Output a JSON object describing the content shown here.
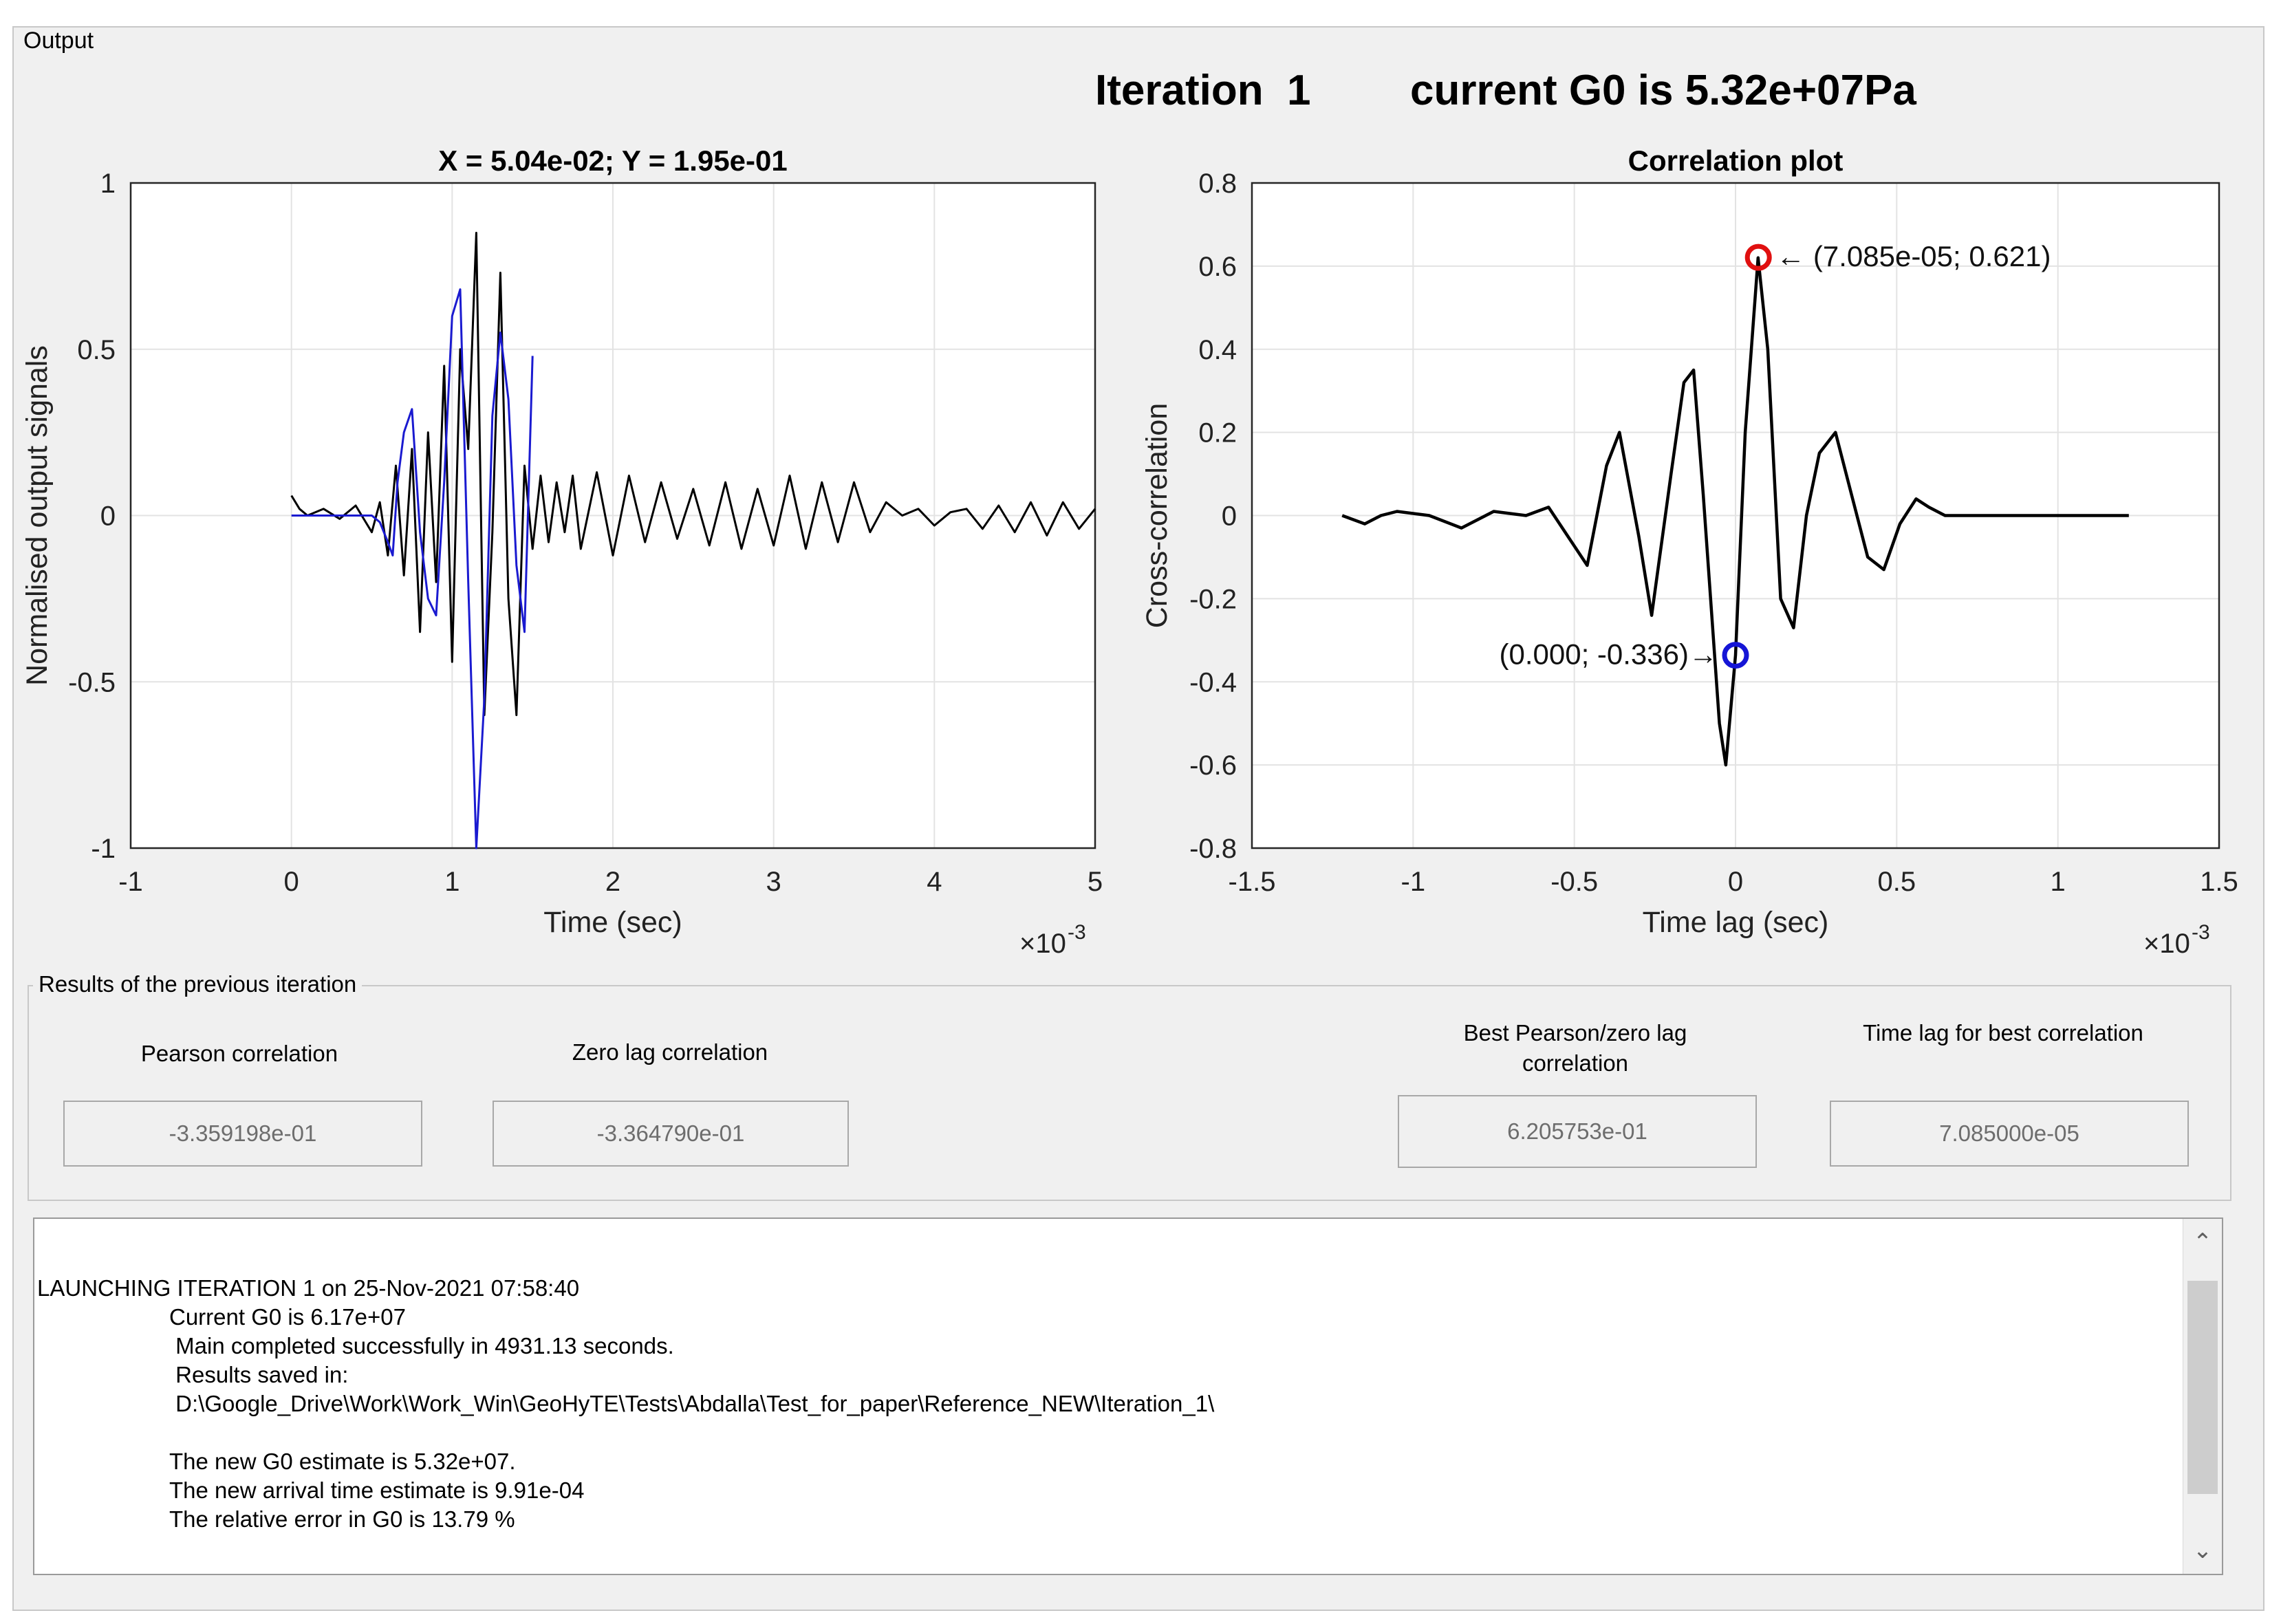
{
  "panel": {
    "title": "Output"
  },
  "header": {
    "iteration": "Iteration  1",
    "g0": "current G0 is 5.32e+07Pa"
  },
  "chart_data": [
    {
      "type": "line",
      "title": "X = 5.04e-02; Y = 1.95e-01",
      "xlabel": "Time (sec)",
      "ylabel": "Normalised output signals",
      "x_exponent": "×10",
      "x_exponent_power": "-3",
      "xlim": [
        -1,
        5
      ],
      "ylim": [
        -1,
        1
      ],
      "xticks": [
        "-1",
        "0",
        "1",
        "2",
        "3",
        "4",
        "5"
      ],
      "yticks": [
        "-1",
        "-0.5",
        "0",
        "0.5",
        "1"
      ],
      "grid": true,
      "x_unit_scale": "1e-3 s",
      "series": [
        {
          "color": "#000000",
          "x": [
            0,
            0.05,
            0.1,
            0.2,
            0.3,
            0.4,
            0.5,
            0.55,
            0.6,
            0.65,
            0.7,
            0.75,
            0.8,
            0.85,
            0.9,
            0.95,
            1.0,
            1.05,
            1.1,
            1.15,
            1.2,
            1.25,
            1.3,
            1.35,
            1.4,
            1.45,
            1.5,
            1.55,
            1.6,
            1.65,
            1.7,
            1.75,
            1.8,
            1.9,
            2.0,
            2.1,
            2.2,
            2.3,
            2.4,
            2.5,
            2.6,
            2.7,
            2.8,
            2.9,
            3.0,
            3.1,
            3.2,
            3.3,
            3.4,
            3.5,
            3.6,
            3.7,
            3.8,
            3.9,
            4.0,
            4.1,
            4.2,
            4.3,
            4.4,
            4.5,
            4.6,
            4.7,
            4.8,
            4.9,
            5.0
          ],
          "y": [
            0.06,
            0.02,
            0.0,
            0.02,
            -0.01,
            0.03,
            -0.05,
            0.04,
            -0.12,
            0.15,
            -0.18,
            0.2,
            -0.35,
            0.25,
            -0.2,
            0.45,
            -0.44,
            0.5,
            0.2,
            0.85,
            -0.6,
            -0.05,
            0.73,
            -0.25,
            -0.6,
            0.15,
            -0.1,
            0.12,
            -0.08,
            0.1,
            -0.05,
            0.12,
            -0.1,
            0.13,
            -0.12,
            0.12,
            -0.08,
            0.1,
            -0.07,
            0.08,
            -0.09,
            0.1,
            -0.1,
            0.08,
            -0.09,
            0.12,
            -0.1,
            0.1,
            -0.08,
            0.1,
            -0.05,
            0.04,
            0.0,
            0.02,
            -0.03,
            0.01,
            0.02,
            -0.04,
            0.03,
            -0.05,
            0.04,
            -0.06,
            0.04,
            -0.04,
            0.02
          ]
        },
        {
          "color": "#1a1ad0",
          "x": [
            0,
            0.1,
            0.2,
            0.3,
            0.4,
            0.5,
            0.55,
            0.6,
            0.63,
            0.66,
            0.7,
            0.75,
            0.8,
            0.85,
            0.9,
            0.95,
            1.0,
            1.05,
            1.1,
            1.15,
            1.2,
            1.25,
            1.3,
            1.35,
            1.4,
            1.45,
            1.5
          ],
          "y": [
            0.0,
            0.0,
            0.0,
            0.0,
            0.0,
            0.0,
            -0.02,
            -0.08,
            -0.12,
            0.1,
            0.25,
            0.32,
            -0.05,
            -0.25,
            -0.3,
            0.1,
            0.6,
            0.68,
            -0.2,
            -1.0,
            -0.55,
            0.3,
            0.55,
            0.35,
            -0.15,
            -0.35,
            0.48
          ]
        }
      ]
    },
    {
      "type": "line",
      "title": "Correlation plot",
      "xlabel": "Time lag (sec)",
      "ylabel": "Cross-correlation",
      "x_exponent": "×10",
      "x_exponent_power": "-3",
      "xlim": [
        -1.5,
        1.5
      ],
      "ylim": [
        -0.8,
        0.8
      ],
      "xticks": [
        "-1.5",
        "-1",
        "-0.5",
        "0",
        "0.5",
        "1",
        "1.5"
      ],
      "yticks": [
        "-0.8",
        "-0.6",
        "-0.4",
        "-0.2",
        "0",
        "0.2",
        "0.4",
        "0.6",
        "0.8"
      ],
      "grid": true,
      "series": [
        {
          "color": "#000000",
          "x": [
            -1.22,
            -1.15,
            -1.1,
            -1.05,
            -0.95,
            -0.85,
            -0.75,
            -0.65,
            -0.58,
            -0.52,
            -0.46,
            -0.4,
            -0.36,
            -0.3,
            -0.26,
            -0.2,
            -0.16,
            -0.13,
            -0.1,
            -0.05,
            -0.03,
            0.0,
            0.03,
            0.07,
            0.1,
            0.14,
            0.18,
            0.22,
            0.26,
            0.31,
            0.36,
            0.41,
            0.46,
            0.51,
            0.56,
            0.6,
            0.65,
            0.75,
            0.9,
            1.05,
            1.22
          ],
          "y": [
            0.0,
            -0.02,
            0.0,
            0.01,
            0.0,
            -0.03,
            0.01,
            0.0,
            0.02,
            -0.05,
            -0.12,
            0.12,
            0.2,
            -0.05,
            -0.24,
            0.1,
            0.32,
            0.35,
            0.05,
            -0.5,
            -0.6,
            -0.336,
            0.2,
            0.62,
            0.4,
            -0.2,
            -0.27,
            0.0,
            0.15,
            0.2,
            0.05,
            -0.1,
            -0.13,
            -0.02,
            0.04,
            0.02,
            0.0,
            0.0,
            0.0,
            0.0,
            0.0
          ]
        }
      ],
      "markers": [
        {
          "x": 0.07085,
          "y": 0.621,
          "color": "#e01010",
          "label": "(7.085e-05; 0.621)",
          "label_side": "right"
        },
        {
          "x": 0.0,
          "y": -0.336,
          "color": "#1515d6",
          "label": "(0.000; -0.336)",
          "label_side": "left"
        }
      ]
    }
  ],
  "results": {
    "title": "Results of the previous iteration",
    "pearson_label": "Pearson correlation",
    "pearson_value": "-3.359198e-01",
    "zerolag_label": "Zero lag correlation",
    "zerolag_value": "-3.364790e-01",
    "best_label_1": "Best Pearson/zero lag",
    "best_label_2": "correlation",
    "best_value": "6.205753e-01",
    "timelag_label": "Time lag for best correlation",
    "timelag_value": "7.085000e-05"
  },
  "log": {
    "lines": [
      "LAUNCHING ITERATION 1 on 25-Nov-2021 07:58:40",
      "Current G0 is 6.17e+07",
      " Main completed successfully in 4931.13 seconds.",
      " Results saved in:",
      " D:\\Google_Drive\\Work\\Work_Win\\GeoHyTE\\Tests\\Abdalla\\Test_for_paper\\Reference_NEW\\Iteration_1\\",
      "The new G0 estimate is 5.32e+07.",
      "The new arrival time estimate is 9.91e-04",
      "The relative error in G0 is 13.79 %"
    ],
    "scroll_up": "⌃",
    "scroll_down": "⌄"
  }
}
